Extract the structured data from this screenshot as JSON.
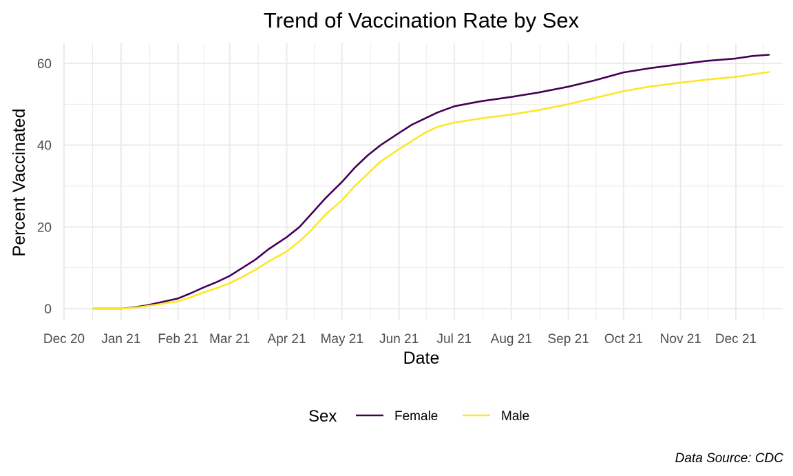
{
  "chart_data": {
    "type": "line",
    "title": "Trend of Vaccination Rate by Sex",
    "xlabel": "Date",
    "ylabel": "Percent Vaccinated",
    "caption": "Data Source: CDC",
    "legend": {
      "title": "Sex",
      "position": "bottom"
    },
    "grid": true,
    "x_ticks": [
      "2020-12-01",
      "2021-01-01",
      "2021-02-01",
      "2021-03-01",
      "2021-04-01",
      "2021-05-01",
      "2021-06-01",
      "2021-07-01",
      "2021-08-01",
      "2021-09-01",
      "2021-10-01",
      "2021-11-01",
      "2021-12-01"
    ],
    "x_tick_labels": [
      "Dec 20",
      "Jan 21",
      "Feb 21",
      "Mar 21",
      "Apr 21",
      "May 21",
      "Jun 21",
      "Jul 21",
      "Aug 21",
      "Sep 21",
      "Oct 21",
      "Nov 21",
      "Dec 21"
    ],
    "xlim": [
      "2020-12-01",
      "2021-12-31"
    ],
    "y_ticks": [
      0,
      20,
      40,
      60
    ],
    "ylim": [
      0,
      65
    ],
    "series": [
      {
        "name": "Female",
        "color": "#440154",
        "points": [
          [
            "2020-12-17",
            0.0
          ],
          [
            "2020-12-24",
            0.0
          ],
          [
            "2021-01-01",
            0.0
          ],
          [
            "2021-01-08",
            0.3
          ],
          [
            "2021-01-15",
            0.8
          ],
          [
            "2021-01-22",
            1.5
          ],
          [
            "2021-02-01",
            2.5
          ],
          [
            "2021-02-08",
            3.8
          ],
          [
            "2021-02-15",
            5.2
          ],
          [
            "2021-02-22",
            6.5
          ],
          [
            "2021-03-01",
            8.0
          ],
          [
            "2021-03-08",
            10.0
          ],
          [
            "2021-03-15",
            12.0
          ],
          [
            "2021-03-22",
            14.5
          ],
          [
            "2021-04-01",
            17.5
          ],
          [
            "2021-04-08",
            20.0
          ],
          [
            "2021-04-15",
            23.5
          ],
          [
            "2021-04-22",
            27.0
          ],
          [
            "2021-05-01",
            31.0
          ],
          [
            "2021-05-08",
            34.5
          ],
          [
            "2021-05-15",
            37.5
          ],
          [
            "2021-05-22",
            40.0
          ],
          [
            "2021-06-01",
            43.0
          ],
          [
            "2021-06-08",
            45.0
          ],
          [
            "2021-06-15",
            46.5
          ],
          [
            "2021-06-22",
            48.0
          ],
          [
            "2021-07-01",
            49.5
          ],
          [
            "2021-07-15",
            50.7
          ],
          [
            "2021-08-01",
            51.8
          ],
          [
            "2021-08-15",
            52.8
          ],
          [
            "2021-09-01",
            54.3
          ],
          [
            "2021-09-15",
            55.8
          ],
          [
            "2021-10-01",
            57.8
          ],
          [
            "2021-10-15",
            58.8
          ],
          [
            "2021-11-01",
            59.8
          ],
          [
            "2021-11-15",
            60.6
          ],
          [
            "2021-12-01",
            61.2
          ],
          [
            "2021-12-10",
            61.8
          ],
          [
            "2021-12-19",
            62.1
          ]
        ]
      },
      {
        "name": "Male",
        "color": "#fde725",
        "points": [
          [
            "2020-12-17",
            0.0
          ],
          [
            "2020-12-24",
            0.0
          ],
          [
            "2021-01-01",
            0.0
          ],
          [
            "2021-01-08",
            0.2
          ],
          [
            "2021-01-15",
            0.6
          ],
          [
            "2021-01-22",
            1.1
          ],
          [
            "2021-02-01",
            1.8
          ],
          [
            "2021-02-08",
            2.8
          ],
          [
            "2021-02-15",
            4.0
          ],
          [
            "2021-02-22",
            5.0
          ],
          [
            "2021-03-01",
            6.2
          ],
          [
            "2021-03-08",
            7.8
          ],
          [
            "2021-03-15",
            9.5
          ],
          [
            "2021-03-22",
            11.5
          ],
          [
            "2021-04-01",
            14.0
          ],
          [
            "2021-04-08",
            16.5
          ],
          [
            "2021-04-15",
            19.5
          ],
          [
            "2021-04-22",
            23.0
          ],
          [
            "2021-05-01",
            26.5
          ],
          [
            "2021-05-08",
            30.0
          ],
          [
            "2021-05-15",
            33.0
          ],
          [
            "2021-05-22",
            36.0
          ],
          [
            "2021-06-01",
            39.0
          ],
          [
            "2021-06-08",
            41.0
          ],
          [
            "2021-06-15",
            43.0
          ],
          [
            "2021-06-22",
            44.5
          ],
          [
            "2021-07-01",
            45.5
          ],
          [
            "2021-07-15",
            46.5
          ],
          [
            "2021-08-01",
            47.5
          ],
          [
            "2021-08-15",
            48.5
          ],
          [
            "2021-09-01",
            50.0
          ],
          [
            "2021-09-15",
            51.5
          ],
          [
            "2021-10-01",
            53.2
          ],
          [
            "2021-10-15",
            54.3
          ],
          [
            "2021-11-01",
            55.3
          ],
          [
            "2021-11-15",
            56.0
          ],
          [
            "2021-12-01",
            56.7
          ],
          [
            "2021-12-10",
            57.3
          ],
          [
            "2021-12-19",
            57.9
          ]
        ]
      }
    ]
  }
}
